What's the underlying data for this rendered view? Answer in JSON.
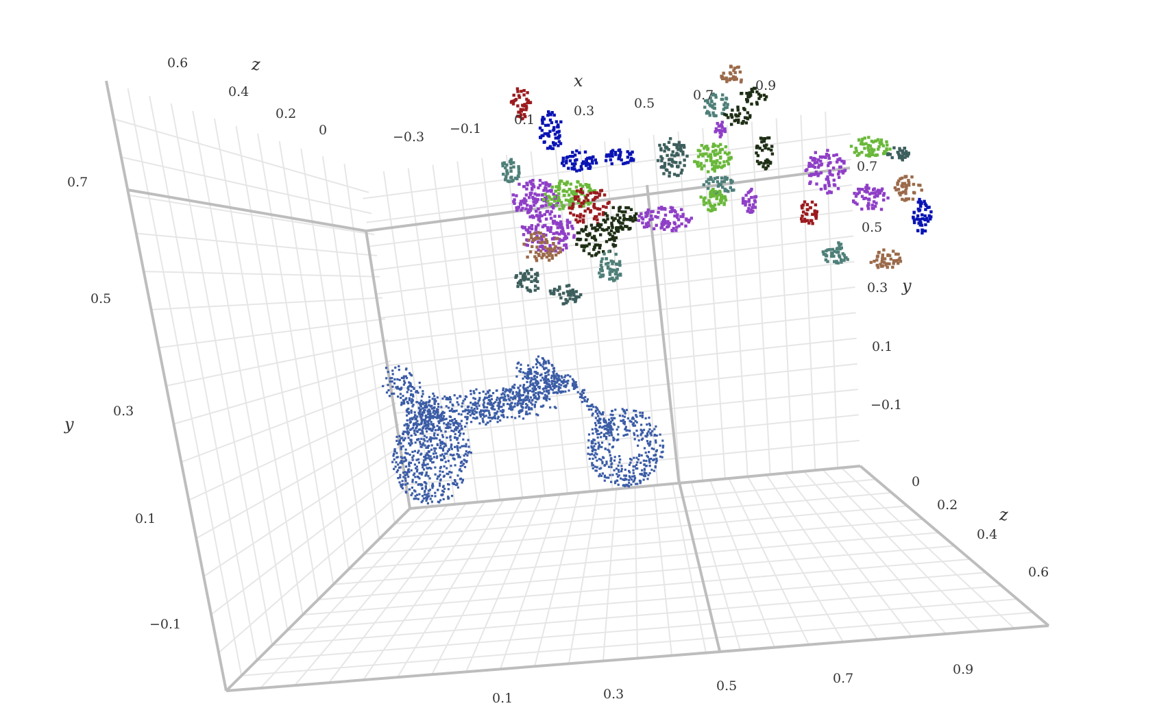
{
  "colors": {
    "motorbike": "#3b5ca6",
    "part_colors": [
      "#9b1b1e",
      "#0a14b4",
      "#8f3fc7",
      "#4f7f79",
      "#6ab83a",
      "#1f2f16",
      "#9b6a4a",
      "#3d5f5d"
    ]
  },
  "left_cube": {
    "z_ticks": [
      "0.6",
      "0.4",
      "0.2",
      "0"
    ],
    "x_ticks_top": [
      "−0.3",
      "−0.1",
      "0.1",
      "0.3",
      "0.5",
      "0.7",
      "0.9"
    ],
    "y_ticks": [
      "0.7",
      "0.5",
      "0.3",
      "0.1",
      "−0.1"
    ],
    "x_ticks_bottom": [
      "0.1",
      "0.3",
      "0.5",
      "0.7",
      "0.9"
    ],
    "labels": {
      "z": "z",
      "x": "x",
      "y": "y"
    }
  },
  "right_cube": {
    "y_ticks": [
      "0.7",
      "0.5",
      "0.3",
      "0.1",
      "−0.1"
    ],
    "z_ticks": [
      "0",
      "0.2",
      "0.4",
      "0.6"
    ],
    "labels": {
      "y": "y",
      "z": "z"
    }
  },
  "chart_data": {
    "type": "scatter",
    "subtype": "3d-point-cloud",
    "description_free": true,
    "series": [
      {
        "role": "input point cloud (motorbike)",
        "color": "#3b5ca6"
      },
      {
        "role": "segmented parts",
        "colors": [
          "#9b1b1e",
          "#0a14b4",
          "#8f3fc7",
          "#4f7f79",
          "#6ab83a",
          "#1f2f16",
          "#9b6a4a",
          "#3d5f5d"
        ]
      }
    ],
    "axes": {
      "x_range": [
        -0.3,
        0.9
      ],
      "y_range": [
        -0.1,
        0.7
      ],
      "z_range": [
        0,
        0.6
      ]
    },
    "grid": true,
    "legend": "none"
  }
}
